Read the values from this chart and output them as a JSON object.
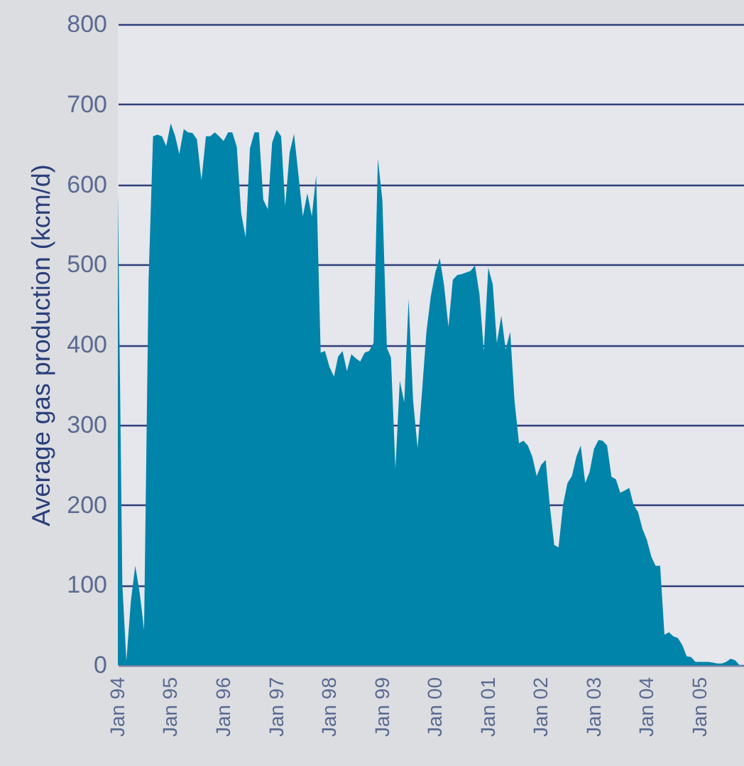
{
  "chart_data": {
    "type": "area",
    "ylabel": "Average gas production (kcm/d)",
    "x": [
      "1994-01",
      "1994-02",
      "1994-03",
      "1994-04",
      "1994-05",
      "1994-06",
      "1994-07",
      "1994-08",
      "1994-09",
      "1994-10",
      "1994-11",
      "1994-12",
      "1995-01",
      "1995-02",
      "1995-03",
      "1995-04",
      "1995-05",
      "1995-06",
      "1995-07",
      "1995-08",
      "1995-09",
      "1995-10",
      "1995-11",
      "1995-12",
      "1996-01",
      "1996-02",
      "1996-03",
      "1996-04",
      "1996-05",
      "1996-06",
      "1996-07",
      "1996-08",
      "1996-09",
      "1996-10",
      "1996-11",
      "1996-12",
      "1997-01",
      "1997-02",
      "1997-03",
      "1997-04",
      "1997-05",
      "1997-06",
      "1997-07",
      "1997-08",
      "1997-09",
      "1997-10",
      "1997-11",
      "1997-12",
      "1998-01",
      "1998-02",
      "1998-03",
      "1998-04",
      "1998-05",
      "1998-06",
      "1998-07",
      "1998-08",
      "1998-09",
      "1998-10",
      "1998-11",
      "1998-12",
      "1999-01",
      "1999-02",
      "1999-03",
      "1999-04",
      "1999-05",
      "1999-06",
      "1999-07",
      "1999-08",
      "1999-09",
      "1999-10",
      "1999-11",
      "1999-12",
      "2000-01",
      "2000-02",
      "2000-03",
      "2000-04",
      "2000-05",
      "2000-06",
      "2000-07",
      "2000-08",
      "2000-09",
      "2000-10",
      "2000-11",
      "2000-12",
      "2001-01",
      "2001-02",
      "2001-03",
      "2001-04",
      "2001-05",
      "2001-06",
      "2001-07",
      "2001-08",
      "2001-09",
      "2001-10",
      "2001-11",
      "2001-12",
      "2002-01",
      "2002-02",
      "2002-03",
      "2002-04",
      "2002-05",
      "2002-06",
      "2002-07",
      "2002-08",
      "2002-09",
      "2002-10",
      "2002-11",
      "2002-12",
      "2003-01",
      "2003-02",
      "2003-03",
      "2003-04",
      "2003-05",
      "2003-06",
      "2003-07",
      "2003-08",
      "2003-09",
      "2003-10",
      "2003-11",
      "2003-12",
      "2004-01",
      "2004-02",
      "2004-03",
      "2004-04",
      "2004-05",
      "2004-06",
      "2004-07",
      "2004-08",
      "2004-09",
      "2004-10",
      "2004-11",
      "2004-12",
      "2005-01",
      "2005-02",
      "2005-03",
      "2005-04",
      "2005-05",
      "2005-06",
      "2005-07",
      "2005-08",
      "2005-09",
      "2005-10"
    ],
    "series": [
      {
        "color": "#0084a9",
        "values": [
          590,
          100,
          5,
          80,
          124,
          90,
          44,
          480,
          660,
          662,
          660,
          648,
          676,
          660,
          638,
          669,
          665,
          664,
          656,
          605,
          660,
          660,
          665,
          660,
          654,
          665,
          665,
          647,
          564,
          534,
          645,
          665,
          665,
          581,
          569,
          652,
          668,
          660,
          573,
          640,
          663,
          611,
          560,
          589,
          560,
          611,
          390,
          392,
          372,
          360,
          385,
          392,
          367,
          388,
          383,
          379,
          390,
          392,
          402,
          632,
          580,
          396,
          384,
          245,
          355,
          328,
          457,
          330,
          271,
          340,
          416,
          460,
          490,
          508,
          475,
          422,
          481,
          487,
          488,
          490,
          492,
          499,
          463,
          392,
          496,
          475,
          402,
          436,
          394,
          416,
          330,
          277,
          280,
          274,
          260,
          236,
          250,
          256,
          200,
          150,
          147,
          200,
          227,
          236,
          260,
          274,
          227,
          241,
          270,
          281,
          280,
          274,
          235,
          232,
          215,
          218,
          221,
          200,
          191,
          170,
          156,
          135,
          124,
          124,
          38,
          41,
          36,
          34,
          25,
          11,
          10,
          4,
          4,
          4,
          4,
          3,
          2,
          2,
          4,
          8,
          6,
          0
        ]
      }
    ],
    "xlim": [
      "1994-01",
      "2005-11"
    ],
    "xticks": [
      {
        "value": "1994-01",
        "label": "Jan 94"
      },
      {
        "value": "1995-01",
        "label": "Jan 95"
      },
      {
        "value": "1996-01",
        "label": "Jan 96"
      },
      {
        "value": "1997-01",
        "label": "Jan 97"
      },
      {
        "value": "1998-01",
        "label": "Jan 98"
      },
      {
        "value": "1999-01",
        "label": "Jan 99"
      },
      {
        "value": "2000-01",
        "label": "Jan 00"
      },
      {
        "value": "2001-01",
        "label": "Jan 01"
      },
      {
        "value": "2002-01",
        "label": "Jan 02"
      },
      {
        "value": "2003-01",
        "label": "Jan 03"
      },
      {
        "value": "2004-01",
        "label": "Jan 04"
      },
      {
        "value": "2005-01",
        "label": "Jan 05"
      }
    ],
    "ylim": [
      0,
      800
    ],
    "yticks": [
      0,
      100,
      200,
      300,
      400,
      500,
      600,
      700,
      800
    ],
    "grid": "y"
  }
}
